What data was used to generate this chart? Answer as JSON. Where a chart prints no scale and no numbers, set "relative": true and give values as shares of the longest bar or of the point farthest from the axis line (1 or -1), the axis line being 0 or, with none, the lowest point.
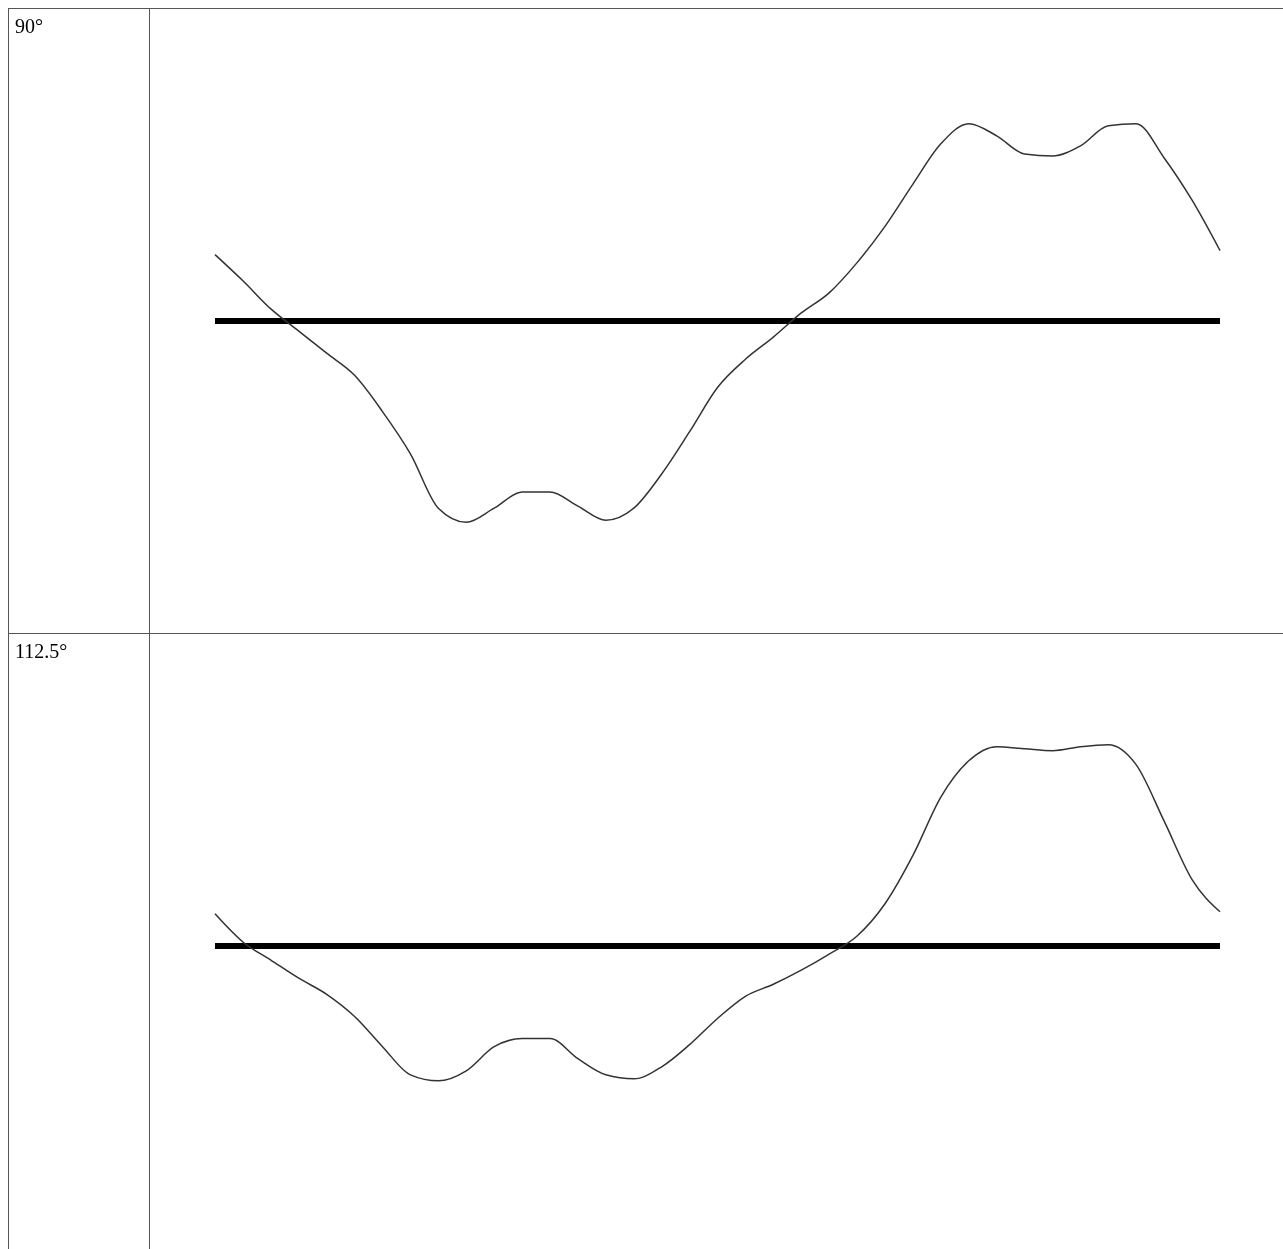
{
  "chart_data": [
    {
      "type": "line",
      "ylabel": "90°",
      "relative": true,
      "grid": false,
      "legend": false,
      "marker": "none",
      "line_style": "solid",
      "categories": [
        null,
        null,
        null,
        null,
        null,
        null,
        null,
        null,
        null,
        null,
        null,
        null,
        null,
        null,
        null,
        null,
        null,
        null,
        null,
        null,
        null,
        null,
        null,
        null,
        null,
        null,
        null,
        null,
        null,
        null,
        null,
        null,
        null,
        null,
        null,
        null,
        null
      ],
      "series": [
        {
          "color": "#333333",
          "values": [
            0.33,
            0.2,
            0.06,
            -0.05,
            -0.16,
            -0.27,
            -0.45,
            -0.66,
            -0.93,
            -1,
            -0.93,
            -0.85,
            -0.85,
            -0.92,
            -0.99,
            -0.93,
            -0.76,
            -0.55,
            -0.33,
            -0.19,
            -0.08,
            0.04,
            0.14,
            0.29,
            0.47,
            0.68,
            0.88,
            0.98,
            0.92,
            0.83,
            0.82,
            0.87,
            0.97,
            0.98,
            0.81,
            0.6,
            0.35
          ]
        }
      ]
    },
    {
      "type": "line",
      "ylabel": "112.5°",
      "relative": true,
      "grid": false,
      "legend": false,
      "marker": "none",
      "line_style": "solid",
      "categories": [
        null,
        null,
        null,
        null,
        null,
        null,
        null,
        null,
        null,
        null,
        null,
        null,
        null,
        null,
        null,
        null,
        null,
        null,
        null,
        null,
        null,
        null,
        null,
        null,
        null,
        null,
        null,
        null,
        null,
        null,
        null,
        null,
        null,
        null,
        null,
        null,
        null
      ],
      "series": [
        {
          "color": "#333333",
          "values": [
            0.16,
            0.02,
            -0.07,
            -0.16,
            -0.24,
            -0.35,
            -0.5,
            -0.64,
            -0.67,
            -0.62,
            -0.5,
            -0.46,
            -0.46,
            -0.56,
            -0.64,
            -0.66,
            -0.6,
            -0.49,
            -0.36,
            -0.25,
            -0.19,
            -0.12,
            -0.04,
            0.05,
            0.21,
            0.45,
            0.74,
            0.92,
            0.99,
            0.98,
            0.97,
            0.99,
            1,
            0.9,
            0.62,
            0.33,
            0.17
          ]
        }
      ]
    }
  ]
}
